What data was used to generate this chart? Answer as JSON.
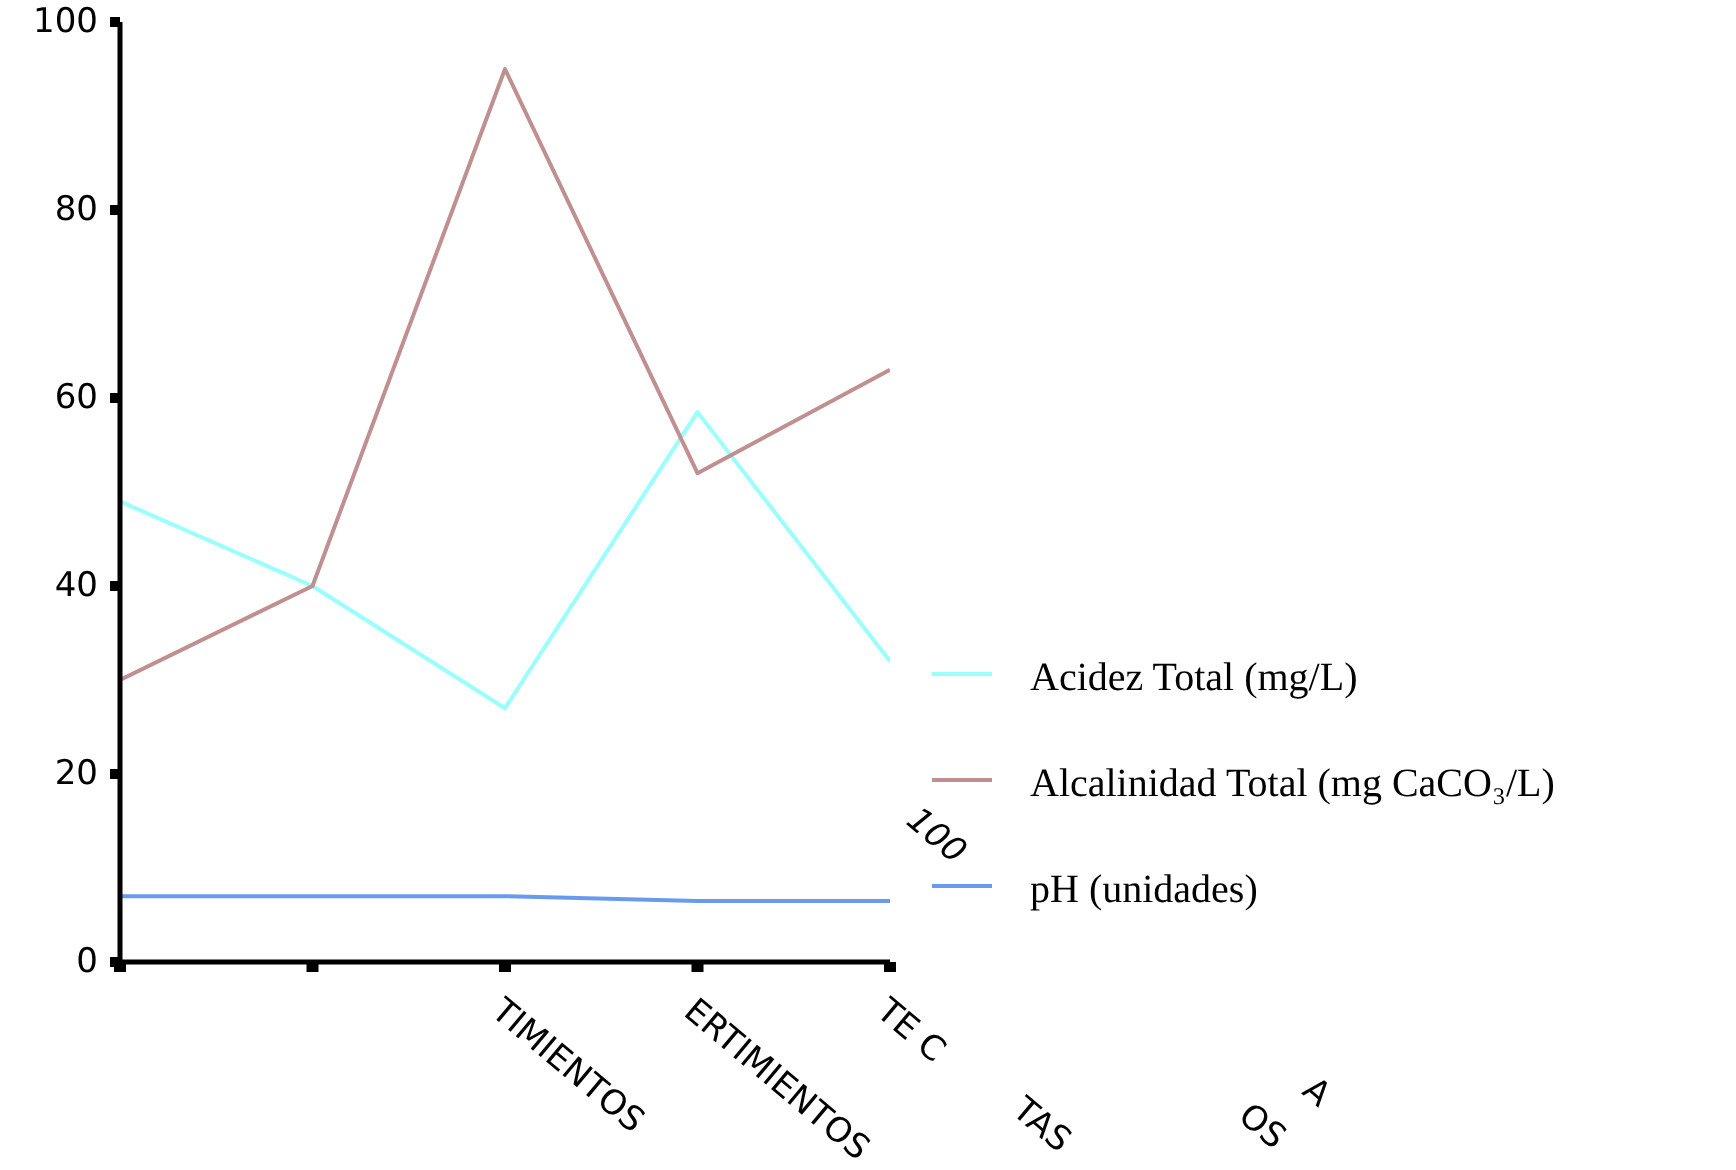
{
  "chart_data": {
    "type": "line",
    "categories": [
      null,
      null,
      "TIMIENTOS",
      "ERTIMIENTOS",
      "TE C"
    ],
    "series": [
      {
        "name": "Acidez Total (mg/L)",
        "color": "#99ffff",
        "values": [
          49,
          40,
          27,
          58.5,
          32
        ]
      },
      {
        "name": "Alcalinidad Total (mg CaCO₃/L)",
        "color": "#c09090",
        "values": [
          30,
          40,
          95,
          52,
          63
        ]
      },
      {
        "name": "pH (unidades)",
        "color": "#6a9aee",
        "values": [
          7,
          7,
          7,
          6.5,
          6.5
        ]
      }
    ],
    "ylim": [
      0,
      100
    ],
    "yticks": [
      0,
      20,
      40,
      60,
      80,
      100
    ],
    "legend": "right",
    "grid": false,
    "marker": "none",
    "line_style": "solid",
    "annotations": [
      "100",
      "TAS",
      "OS",
      "A"
    ]
  }
}
